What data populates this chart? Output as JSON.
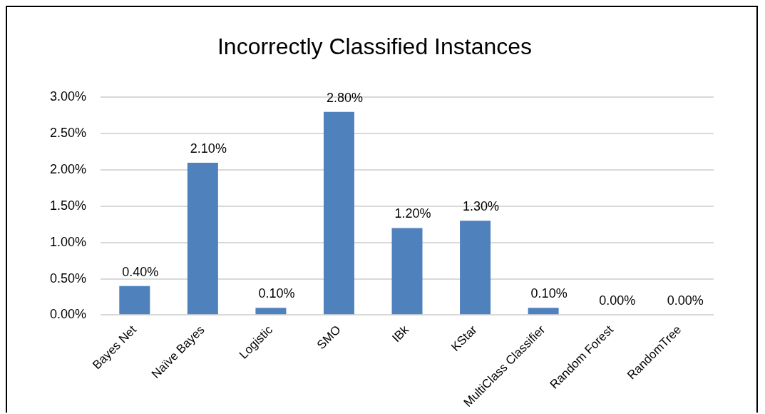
{
  "chart_data": {
    "type": "bar",
    "title": "Incorrectly Classified Instances",
    "categories": [
      "Bayes Net",
      "Naïve Bayes",
      "Logistic",
      "SMO",
      "IBk",
      "KStar",
      "MultiClass Classifier",
      "Random Forest",
      "RandomTree"
    ],
    "values": [
      0.4,
      2.1,
      0.1,
      2.8,
      1.2,
      1.3,
      0.1,
      0,
      0
    ],
    "value_labels": [
      "0.40%",
      "2.10%",
      "0.10%",
      "2.80%",
      "1.20%",
      "1.30%",
      "0.10%",
      "0.00%",
      "0.00%"
    ],
    "color": "#4f81bd",
    "ylim": [
      0,
      3
    ],
    "yticks": [
      {
        "value": 0,
        "label": "0.00%"
      },
      {
        "value": 0.5,
        "label": "0.50%"
      },
      {
        "value": 1,
        "label": "1.00%"
      },
      {
        "value": 1.5,
        "label": "1.50%"
      },
      {
        "value": 2,
        "label": "2.00%"
      },
      {
        "value": 2.5,
        "label": "2.50%"
      },
      {
        "value": 3,
        "label": "3.00%"
      }
    ],
    "grid": "y",
    "legend": false
  }
}
